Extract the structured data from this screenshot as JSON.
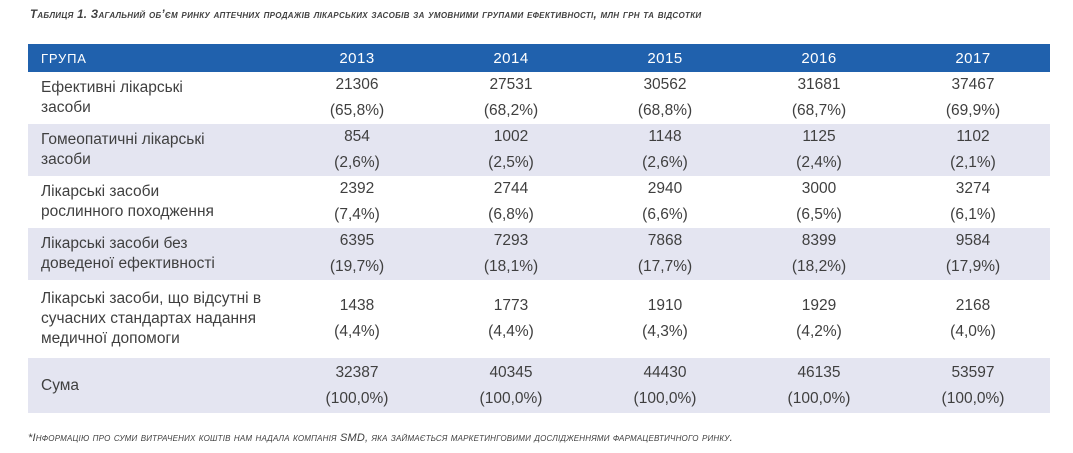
{
  "page": {
    "title": "Таблиця 1. Загальний об’єм ринку аптечних продажів лікарських засобів за умовними групами ефективності, млн грн та відсотки",
    "footnote": "*Інформацію про суми витрачених коштів нам надала компанія SMD, яка займається маркетинговими дослідженнями фармацевтичного ринку."
  },
  "colors": {
    "header_bg": "#2061ad",
    "header_text": "#ffffff",
    "row_alt_bg": "#e4e5f1",
    "body_text": "#3f3f3f"
  },
  "table": {
    "group_header": "ГРУПА",
    "years": [
      "2013",
      "2014",
      "2015",
      "2016",
      "2017"
    ],
    "rows": [
      {
        "label": "Ефективні лікарські\nзасоби",
        "cells": [
          {
            "amount": "21306",
            "percent": "(65,8%)"
          },
          {
            "amount": "27531",
            "percent": "(68,2%)"
          },
          {
            "amount": "30562",
            "percent": "(68,8%)"
          },
          {
            "amount": "31681",
            "percent": "(68,7%)"
          },
          {
            "amount": "37467",
            "percent": "(69,9%)"
          }
        ]
      },
      {
        "label": "Гомеопатичні лікарські\nзасоби",
        "cells": [
          {
            "amount": "854",
            "percent": "(2,6%)"
          },
          {
            "amount": "1002",
            "percent": "(2,5%)"
          },
          {
            "amount": "1148",
            "percent": "(2,6%)"
          },
          {
            "amount": "1125",
            "percent": "(2,4%)"
          },
          {
            "amount": "1102",
            "percent": "(2,1%)"
          }
        ]
      },
      {
        "label": "Лікарські засоби\nрослинного походження",
        "cells": [
          {
            "amount": "2392",
            "percent": "(7,4%)"
          },
          {
            "amount": "2744",
            "percent": "(6,8%)"
          },
          {
            "amount": "2940",
            "percent": "(6,6%)"
          },
          {
            "amount": "3000",
            "percent": "(6,5%)"
          },
          {
            "amount": "3274",
            "percent": "(6,1%)"
          }
        ]
      },
      {
        "label": "Лікарські засоби без\nдоведеної ефективності",
        "cells": [
          {
            "amount": "6395",
            "percent": "(19,7%)"
          },
          {
            "amount": "7293",
            "percent": "(18,1%)"
          },
          {
            "amount": "7868",
            "percent": "(17,7%)"
          },
          {
            "amount": "8399",
            "percent": "(18,2%)"
          },
          {
            "amount": "9584",
            "percent": "(17,9%)"
          }
        ]
      },
      {
        "label": "Лікарські засоби, що відсутні в\nсучасних стандартах надання\nмедичної допомоги",
        "cells": [
          {
            "amount": "1438",
            "percent": "(4,4%)"
          },
          {
            "amount": "1773",
            "percent": "(4,4%)"
          },
          {
            "amount": "1910",
            "percent": "(4,3%)"
          },
          {
            "amount": "1929",
            "percent": "(4,2%)"
          },
          {
            "amount": "2168",
            "percent": "(4,0%)"
          }
        ]
      },
      {
        "label": "Сума",
        "cells": [
          {
            "amount": "32387",
            "percent": "(100,0%)"
          },
          {
            "amount": "40345",
            "percent": "(100,0%)"
          },
          {
            "amount": "44430",
            "percent": "(100,0%)"
          },
          {
            "amount": "46135",
            "percent": "(100,0%)"
          },
          {
            "amount": "53597",
            "percent": "(100,0%)"
          }
        ]
      }
    ]
  }
}
